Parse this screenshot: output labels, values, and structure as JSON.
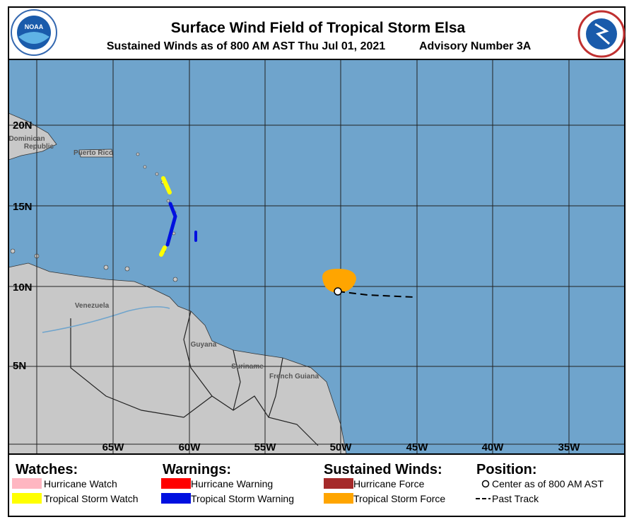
{
  "header": {
    "title": "Surface Wind Field of Tropical Storm Elsa",
    "subtitle": "Sustained Winds as of 800 AM AST Thu Jul 01, 2021",
    "advisory": "Advisory Number 3A",
    "logo": "NOAA"
  },
  "map": {
    "latitude_labels": [
      "20N",
      "15N",
      "10N",
      "5N"
    ],
    "longitude_labels": [
      "65W",
      "60W",
      "55W",
      "50W",
      "45W",
      "40W",
      "35W"
    ],
    "place_labels": [
      "Dominican",
      "Republic",
      "Puerto Rico",
      "Venezuela",
      "Guyana",
      "Suriname",
      "French Guiana"
    ]
  },
  "legend": {
    "watches": {
      "title": "Watches:",
      "items": [
        "Hurricane Watch",
        "Tropical Storm Watch"
      ]
    },
    "warnings": {
      "title": "Warnings:",
      "items": [
        "Hurricane Warning",
        "Tropical Storm Warning"
      ]
    },
    "winds": {
      "title": "Sustained Winds:",
      "items": [
        "Hurricane Force",
        "Tropical Storm Force"
      ]
    },
    "position": {
      "title": "Position:",
      "items": [
        "Center as of 800 AM AST",
        "Past Track"
      ]
    }
  }
}
